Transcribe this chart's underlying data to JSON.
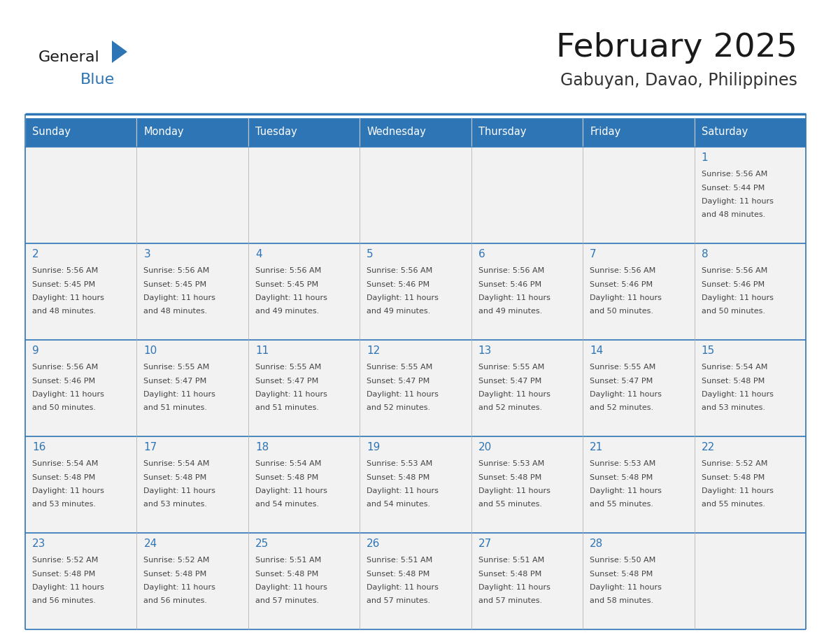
{
  "title": "February 2025",
  "subtitle": "Gabuyan, Davao, Philippines",
  "header_bg": "#2E75B6",
  "header_text_color": "#FFFFFF",
  "cell_bg": "#F2F2F2",
  "border_color": "#2E75B6",
  "day_names": [
    "Sunday",
    "Monday",
    "Tuesday",
    "Wednesday",
    "Thursday",
    "Friday",
    "Saturday"
  ],
  "title_color": "#1a1a1a",
  "subtitle_color": "#333333",
  "day_number_color": "#2E75B6",
  "cell_text_color": "#444444",
  "logo_general_color": "#1a1a1a",
  "logo_blue_color": "#2E75B6",
  "logo_triangle_color": "#2E75B6",
  "calendar": [
    [
      null,
      null,
      null,
      null,
      null,
      null,
      {
        "day": 1,
        "sunrise": "5:56 AM",
        "sunset": "5:44 PM",
        "daylight": "11 hours and 48 minutes."
      }
    ],
    [
      {
        "day": 2,
        "sunrise": "5:56 AM",
        "sunset": "5:45 PM",
        "daylight": "11 hours and 48 minutes."
      },
      {
        "day": 3,
        "sunrise": "5:56 AM",
        "sunset": "5:45 PM",
        "daylight": "11 hours and 48 minutes."
      },
      {
        "day": 4,
        "sunrise": "5:56 AM",
        "sunset": "5:45 PM",
        "daylight": "11 hours and 49 minutes."
      },
      {
        "day": 5,
        "sunrise": "5:56 AM",
        "sunset": "5:46 PM",
        "daylight": "11 hours and 49 minutes."
      },
      {
        "day": 6,
        "sunrise": "5:56 AM",
        "sunset": "5:46 PM",
        "daylight": "11 hours and 49 minutes."
      },
      {
        "day": 7,
        "sunrise": "5:56 AM",
        "sunset": "5:46 PM",
        "daylight": "11 hours and 50 minutes."
      },
      {
        "day": 8,
        "sunrise": "5:56 AM",
        "sunset": "5:46 PM",
        "daylight": "11 hours and 50 minutes."
      }
    ],
    [
      {
        "day": 9,
        "sunrise": "5:56 AM",
        "sunset": "5:46 PM",
        "daylight": "11 hours and 50 minutes."
      },
      {
        "day": 10,
        "sunrise": "5:55 AM",
        "sunset": "5:47 PM",
        "daylight": "11 hours and 51 minutes."
      },
      {
        "day": 11,
        "sunrise": "5:55 AM",
        "sunset": "5:47 PM",
        "daylight": "11 hours and 51 minutes."
      },
      {
        "day": 12,
        "sunrise": "5:55 AM",
        "sunset": "5:47 PM",
        "daylight": "11 hours and 52 minutes."
      },
      {
        "day": 13,
        "sunrise": "5:55 AM",
        "sunset": "5:47 PM",
        "daylight": "11 hours and 52 minutes."
      },
      {
        "day": 14,
        "sunrise": "5:55 AM",
        "sunset": "5:47 PM",
        "daylight": "11 hours and 52 minutes."
      },
      {
        "day": 15,
        "sunrise": "5:54 AM",
        "sunset": "5:48 PM",
        "daylight": "11 hours and 53 minutes."
      }
    ],
    [
      {
        "day": 16,
        "sunrise": "5:54 AM",
        "sunset": "5:48 PM",
        "daylight": "11 hours and 53 minutes."
      },
      {
        "day": 17,
        "sunrise": "5:54 AM",
        "sunset": "5:48 PM",
        "daylight": "11 hours and 53 minutes."
      },
      {
        "day": 18,
        "sunrise": "5:54 AM",
        "sunset": "5:48 PM",
        "daylight": "11 hours and 54 minutes."
      },
      {
        "day": 19,
        "sunrise": "5:53 AM",
        "sunset": "5:48 PM",
        "daylight": "11 hours and 54 minutes."
      },
      {
        "day": 20,
        "sunrise": "5:53 AM",
        "sunset": "5:48 PM",
        "daylight": "11 hours and 55 minutes."
      },
      {
        "day": 21,
        "sunrise": "5:53 AM",
        "sunset": "5:48 PM",
        "daylight": "11 hours and 55 minutes."
      },
      {
        "day": 22,
        "sunrise": "5:52 AM",
        "sunset": "5:48 PM",
        "daylight": "11 hours and 55 minutes."
      }
    ],
    [
      {
        "day": 23,
        "sunrise": "5:52 AM",
        "sunset": "5:48 PM",
        "daylight": "11 hours and 56 minutes."
      },
      {
        "day": 24,
        "sunrise": "5:52 AM",
        "sunset": "5:48 PM",
        "daylight": "11 hours and 56 minutes."
      },
      {
        "day": 25,
        "sunrise": "5:51 AM",
        "sunset": "5:48 PM",
        "daylight": "11 hours and 57 minutes."
      },
      {
        "day": 26,
        "sunrise": "5:51 AM",
        "sunset": "5:48 PM",
        "daylight": "11 hours and 57 minutes."
      },
      {
        "day": 27,
        "sunrise": "5:51 AM",
        "sunset": "5:48 PM",
        "daylight": "11 hours and 57 minutes."
      },
      {
        "day": 28,
        "sunrise": "5:50 AM",
        "sunset": "5:48 PM",
        "daylight": "11 hours and 58 minutes."
      },
      null
    ]
  ]
}
